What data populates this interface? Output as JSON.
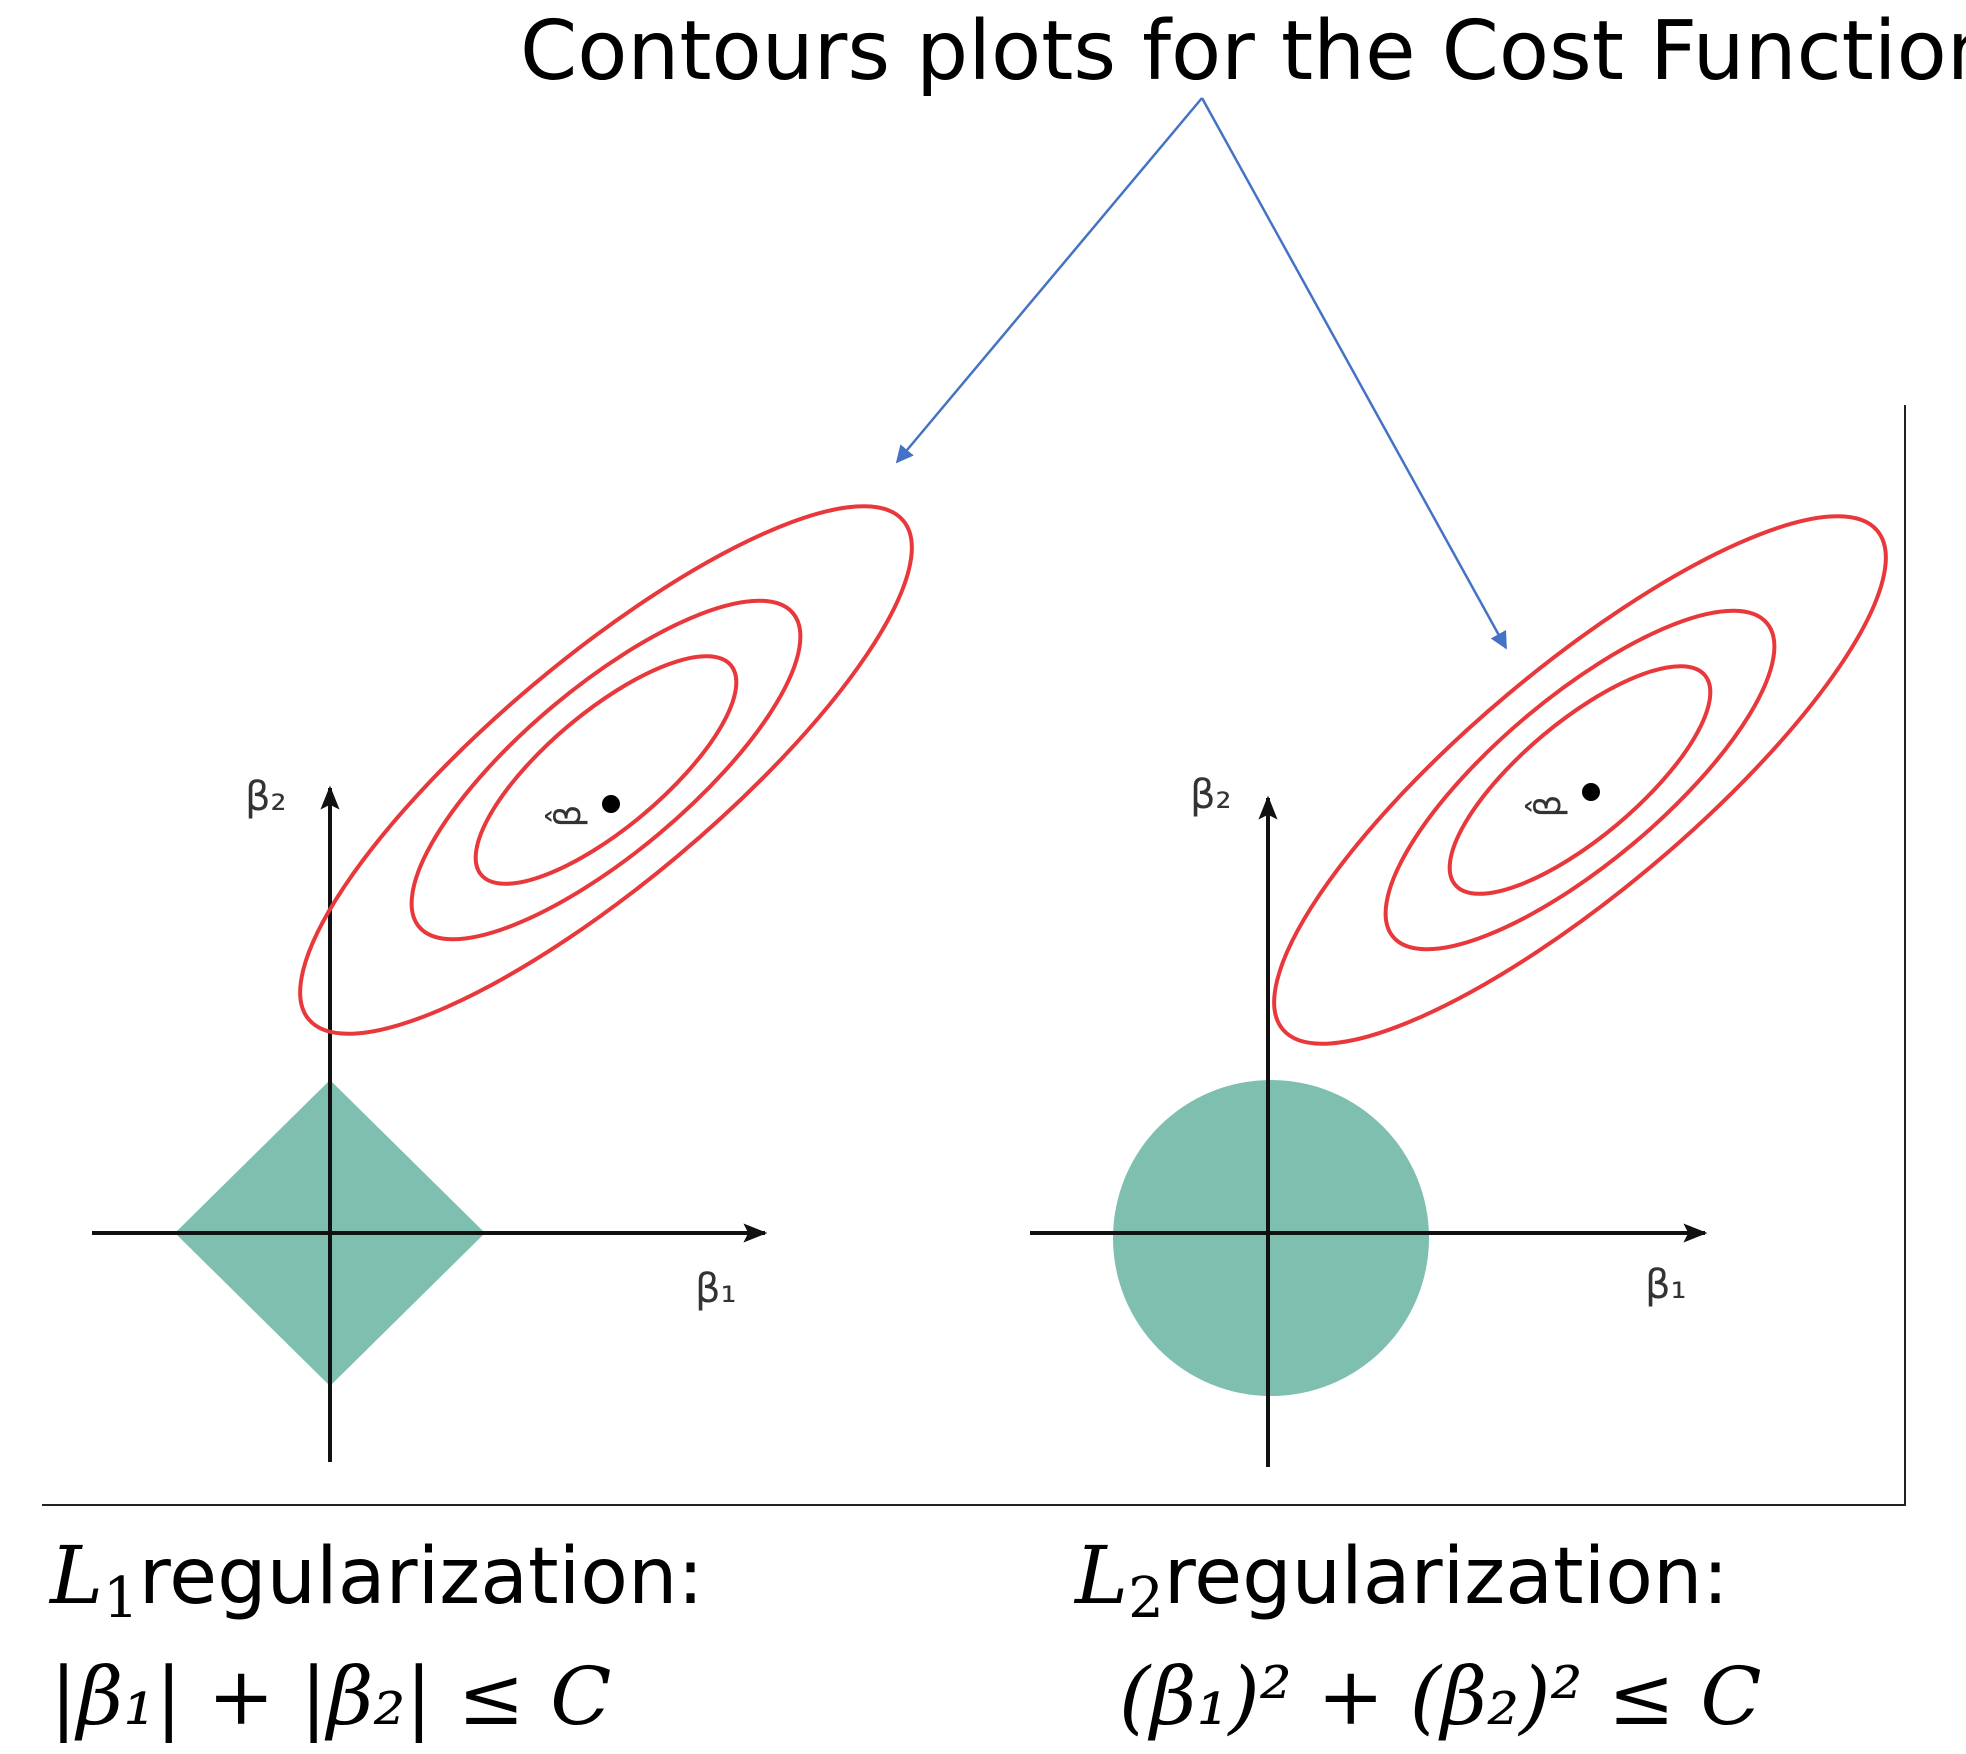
{
  "title": "Contours plots for the Cost Function",
  "colors": {
    "contour": "#e8383b",
    "constraint_fill": "#7ebfb0",
    "arrow": "#4472c4",
    "axis": "#111111",
    "frame": "#222222"
  },
  "panels": [
    {
      "id": "l1",
      "axis_y_label": "β₂",
      "axis_x_label": "β₁",
      "estimate_label": "β̂",
      "constraint_shape": "diamond",
      "caption_norm": "L",
      "caption_sub": "1",
      "caption_word": "regularization:",
      "caption_formula": "|β₁| + |β₂| ≤ C"
    },
    {
      "id": "l2",
      "axis_y_label": "β₂",
      "axis_x_label": "β₁",
      "estimate_label": "β̂",
      "constraint_shape": "circle",
      "caption_norm": "L",
      "caption_sub": "2",
      "caption_word": "regularization:",
      "caption_formula": "(β₁)² + (β₂)² ≤ C"
    }
  ]
}
